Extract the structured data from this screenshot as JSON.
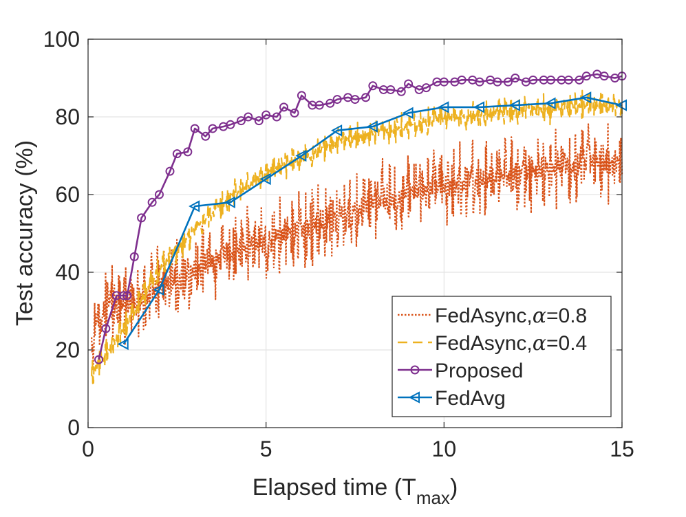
{
  "chart_data": {
    "type": "line",
    "xlabel": "Elapsed time (T",
    "xlabel_sub": "max",
    "xlabel_close": ")",
    "ylabel": "Test accuracy (%)",
    "xlim": [
      0,
      15
    ],
    "ylim": [
      0,
      100
    ],
    "xticks": [
      0,
      5,
      10,
      15
    ],
    "yticks": [
      0,
      20,
      40,
      60,
      80,
      100
    ],
    "grid": true,
    "legend_position": "bottom-right",
    "series": [
      {
        "name": "FedAsync,α=0.8",
        "legend_prefix": "FedAsync,",
        "legend_alpha": "α",
        "legend_suffix": "=0.8",
        "color": "#D95319",
        "style": "dotted",
        "x": [
          0.1,
          0.6,
          1.1,
          1.6,
          2.1,
          2.6,
          3.1,
          3.6,
          4.1,
          4.6,
          5.1,
          5.6,
          6.1,
          6.6,
          7.1,
          7.6,
          8.1,
          8.6,
          9.1,
          9.6,
          10.1,
          10.6,
          11.1,
          11.6,
          12.1,
          12.6,
          13.1,
          13.6,
          14.1,
          14.6,
          15.0
        ],
        "y": [
          26,
          33,
          31,
          33,
          37,
          38,
          41,
          43,
          45,
          47,
          48,
          50,
          51,
          53,
          55,
          56,
          58,
          59,
          61,
          61,
          62,
          63,
          64,
          65,
          65,
          66,
          67,
          67,
          68,
          68,
          69
        ],
        "noise": 11
      },
      {
        "name": "FedAsync,α=0.4",
        "legend_prefix": "FedAsync,",
        "legend_alpha": "α",
        "legend_suffix": "=0.4",
        "color": "#EDB120",
        "style": "dashed",
        "x": [
          0.1,
          0.6,
          1.1,
          1.6,
          2.1,
          2.6,
          3.1,
          3.6,
          4.1,
          4.6,
          5.1,
          5.6,
          6.1,
          6.6,
          7.1,
          7.6,
          8.1,
          8.6,
          9.1,
          9.6,
          10.1,
          10.6,
          11.1,
          11.6,
          12.1,
          12.6,
          13.1,
          13.6,
          14.1,
          14.6,
          15.0
        ],
        "y": [
          14,
          20,
          27,
          35,
          42,
          47,
          52,
          56,
          60,
          63,
          66,
          68,
          70,
          72,
          74,
          75,
          76,
          77,
          78,
          79,
          80,
          80,
          81,
          81,
          82,
          82,
          82,
          83,
          83,
          83,
          83
        ],
        "noise": 4
      },
      {
        "name": "Proposed",
        "color": "#7E2F8E",
        "style": "solid",
        "marker": "circle",
        "x": [
          0.3,
          0.5,
          0.8,
          1.0,
          1.1,
          1.3,
          1.5,
          1.8,
          2.0,
          2.3,
          2.5,
          2.8,
          3.0,
          3.3,
          3.5,
          3.8,
          4.0,
          4.3,
          4.5,
          4.8,
          5.0,
          5.3,
          5.5,
          5.8,
          6.0,
          6.3,
          6.5,
          6.8,
          7.0,
          7.3,
          7.5,
          7.8,
          8.0,
          8.3,
          8.5,
          8.8,
          9.0,
          9.3,
          9.5,
          9.8,
          10.0,
          10.3,
          10.5,
          10.8,
          11.0,
          11.3,
          11.5,
          11.8,
          12.0,
          12.3,
          12.5,
          12.8,
          13.0,
          13.3,
          13.5,
          13.8,
          14.0,
          14.3,
          14.5,
          14.8,
          15.0
        ],
        "y": [
          17.5,
          25.5,
          34,
          34,
          34,
          44,
          54,
          58,
          60,
          66,
          70.5,
          71,
          77,
          75,
          77,
          77.5,
          78,
          79,
          80,
          79,
          80.5,
          80,
          82.5,
          81,
          85.5,
          83,
          83,
          83.5,
          84.5,
          85,
          84.5,
          85,
          88,
          87,
          87,
          86.5,
          88.5,
          87,
          87.5,
          89,
          89,
          89,
          89.5,
          89.5,
          89,
          89.5,
          89,
          89,
          90,
          89,
          89.5,
          89.5,
          89.5,
          89.5,
          89.5,
          89.5,
          90.5,
          91,
          90.5,
          90,
          90.5
        ]
      },
      {
        "name": "FedAvg",
        "color": "#0072BD",
        "style": "solid",
        "marker": "triangle-left",
        "x": [
          1,
          2,
          3,
          4,
          5,
          6,
          7,
          8,
          9,
          10,
          11,
          12,
          13,
          14,
          15
        ],
        "y": [
          21.5,
          35.5,
          57,
          58,
          64,
          70,
          76.5,
          77.5,
          81,
          82.5,
          82.5,
          83,
          83.5,
          85,
          83
        ]
      }
    ]
  }
}
